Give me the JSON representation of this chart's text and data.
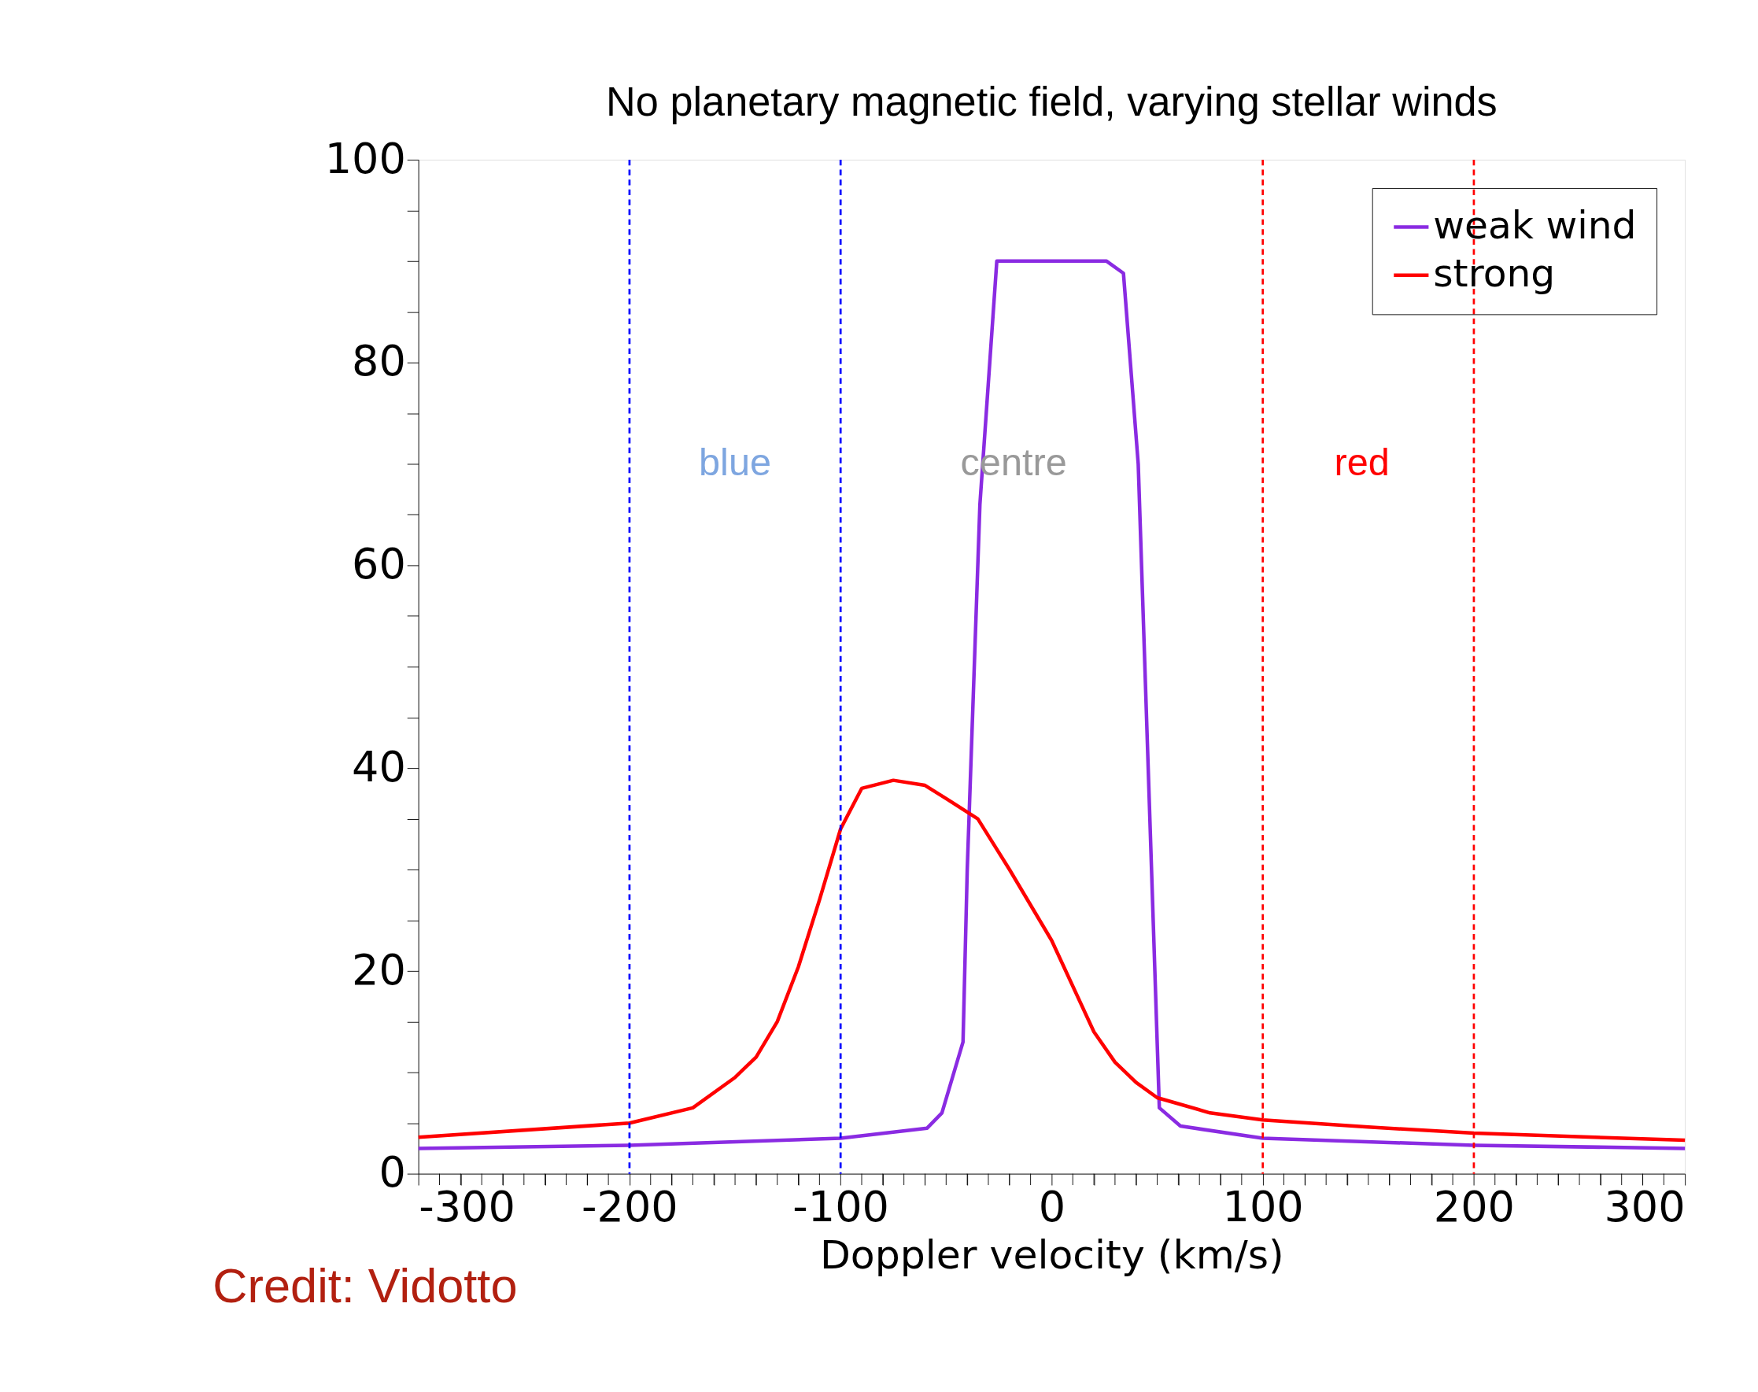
{
  "chart_data": {
    "type": "line",
    "title": "No planetary magnetic field, varying stellar winds",
    "xlabel": "Doppler velocity (km/s)",
    "xlim": [
      -300,
      300
    ],
    "ylim": [
      0,
      100
    ],
    "xticks": [
      -300,
      {
        "value": -290,
        "label": null
      },
      {
        "value": -280,
        "label": null
      },
      {
        "value": -270,
        "label": null
      },
      {
        "value": -260,
        "label": null
      },
      {
        "value": -250,
        "label": null
      },
      {
        "value": -240,
        "label": null
      },
      {
        "value": -230,
        "label": null
      },
      {
        "value": -220,
        "label": null
      },
      {
        "value": -210,
        "label": null
      },
      -200,
      {
        "value": -190,
        "label": null
      },
      {
        "value": -180,
        "label": null
      },
      {
        "value": -170,
        "label": null
      },
      {
        "value": -160,
        "label": null
      },
      {
        "value": -150,
        "label": null
      },
      {
        "value": -140,
        "label": null
      },
      {
        "value": -130,
        "label": null
      },
      {
        "value": -120,
        "label": null
      },
      {
        "value": -110,
        "label": null
      },
      -100,
      {
        "value": -90,
        "label": null
      },
      {
        "value": -80,
        "label": null
      },
      {
        "value": -70,
        "label": null
      },
      {
        "value": -60,
        "label": null
      },
      {
        "value": -50,
        "label": null
      },
      {
        "value": -40,
        "label": null
      },
      {
        "value": -30,
        "label": null
      },
      {
        "value": -20,
        "label": null
      },
      {
        "value": -10,
        "label": null
      },
      0,
      {
        "value": 10,
        "label": null
      },
      {
        "value": 20,
        "label": null
      },
      {
        "value": 30,
        "label": null
      },
      {
        "value": 40,
        "label": null
      },
      {
        "value": 50,
        "label": null
      },
      {
        "value": 60,
        "label": null
      },
      {
        "value": 70,
        "label": null
      },
      {
        "value": 80,
        "label": null
      },
      {
        "value": 90,
        "label": null
      },
      100,
      {
        "value": 110,
        "label": null
      },
      {
        "value": 120,
        "label": null
      },
      {
        "value": 130,
        "label": null
      },
      {
        "value": 140,
        "label": null
      },
      {
        "value": 150,
        "label": null
      },
      {
        "value": 160,
        "label": null
      },
      {
        "value": 170,
        "label": null
      },
      {
        "value": 180,
        "label": null
      },
      {
        "value": 190,
        "label": null
      },
      200,
      {
        "value": 210,
        "label": null
      },
      {
        "value": 220,
        "label": null
      },
      {
        "value": 230,
        "label": null
      },
      {
        "value": 240,
        "label": null
      },
      {
        "value": 250,
        "label": null
      },
      {
        "value": 260,
        "label": null
      },
      {
        "value": 270,
        "label": null
      },
      {
        "value": 280,
        "label": null
      },
      {
        "value": 290,
        "label": null
      },
      300
    ],
    "yticks": [
      0,
      {
        "value": 5,
        "label": null
      },
      {
        "value": 10,
        "label": null
      },
      {
        "value": 15,
        "label": null
      },
      20,
      {
        "value": 25,
        "label": null
      },
      {
        "value": 30,
        "label": null
      },
      {
        "value": 35,
        "label": null
      },
      40,
      {
        "value": 45,
        "label": null
      },
      {
        "value": 50,
        "label": null
      },
      {
        "value": 55,
        "label": null
      },
      60,
      {
        "value": 65,
        "label": null
      },
      {
        "value": 70,
        "label": null
      },
      {
        "value": 75,
        "label": null
      },
      80,
      {
        "value": 85,
        "label": null
      },
      {
        "value": 90,
        "label": null
      },
      {
        "value": 95,
        "label": null
      },
      100
    ],
    "grid": false,
    "legend": "top right",
    "marker": "none",
    "line_style": "solid",
    "series": [
      {
        "name": "weak wind",
        "color": "#8a2be2",
        "x": [
          -300,
          -200,
          -100,
          -59,
          -52,
          -42,
          -40,
          -34,
          -26,
          0,
          26,
          34,
          41,
          51,
          61,
          100,
          200,
          300
        ],
        "values": [
          2.5,
          2.8,
          3.5,
          4.5,
          6,
          13,
          30,
          66,
          90,
          90,
          90,
          88.8,
          70,
          6.5,
          4.7,
          3.5,
          2.8,
          2.5
        ]
      },
      {
        "name": "strong",
        "color": "#ff0000",
        "x": [
          -300,
          -200,
          -170,
          -150,
          -140,
          -130,
          -120,
          -110,
          -100,
          -90,
          -75,
          -60,
          -50,
          -35,
          -20,
          0,
          20,
          30,
          40,
          50,
          75,
          100,
          150,
          200,
          300
        ],
        "values": [
          3.6,
          5,
          6.5,
          9.5,
          11.5,
          15,
          20.4,
          27,
          34,
          38,
          38.8,
          38.3,
          37,
          35,
          30,
          23,
          14,
          11,
          9,
          7.5,
          6,
          5.3,
          4.6,
          4,
          3.3
        ]
      }
    ],
    "ref_lines": [
      {
        "axis": "x",
        "value": -200,
        "color": "#0000ff",
        "line_style": "dashed"
      },
      {
        "axis": "x",
        "value": -100,
        "color": "#0000ff",
        "line_style": "dashed"
      },
      {
        "axis": "x",
        "value": 100,
        "color": "#ff0000",
        "line_style": "dashed"
      },
      {
        "axis": "x",
        "value": 200,
        "color": "#ff0000",
        "line_style": "dashed"
      }
    ],
    "annotations": [
      "blue",
      "centre",
      "red",
      "Credit: Vidotto"
    ]
  }
}
